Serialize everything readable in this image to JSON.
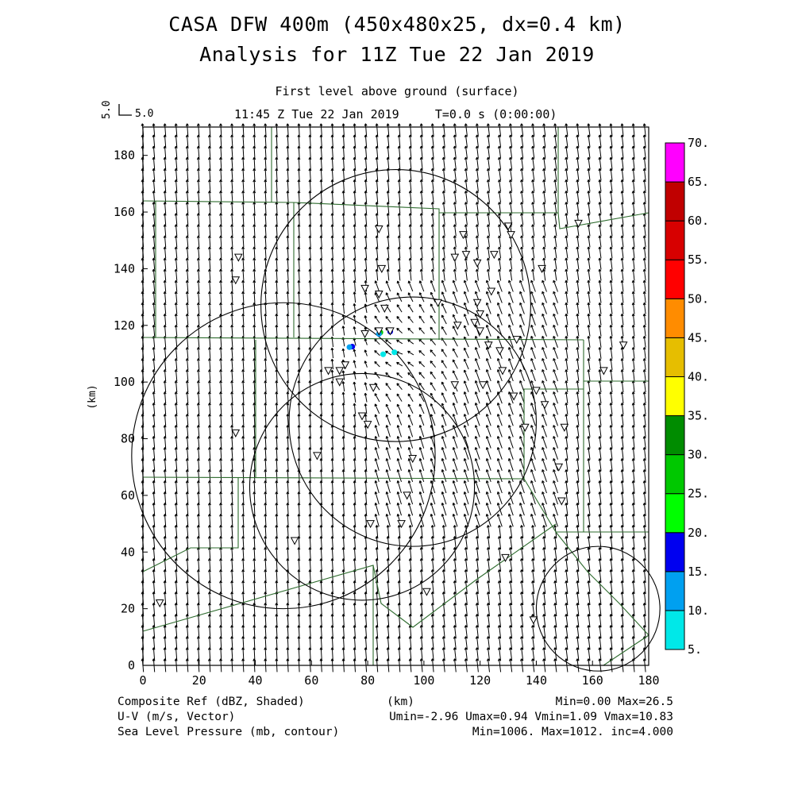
{
  "header": {
    "title_line1": "CASA DFW 400m (450x480x25, dx=0.4 km)",
    "title_line2": "Analysis for 11Z Tue 22 Jan 2019",
    "level": "First level above ground (surface)",
    "time": "11:45 Z Tue 22 Jan 2019     T=0.0 s (0:00:00)"
  },
  "vector_key": {
    "rotated_label": "5.0",
    "label": "5.0"
  },
  "footer": {
    "left_1": "Composite Ref (dBZ, Shaded)",
    "left_2": "U-V (m/s, Vector)",
    "left_3": "Sea Level Pressure (mb, contour)",
    "center": "(km)",
    "right_1": "Min=0.00 Max=26.5",
    "right_2": "Umin=-2.96 Umax=0.94 Vmin=1.09 Vmax=10.83",
    "right_3": "Min=1006. Max=1012. inc=4.000"
  },
  "colors": {
    "county_lines": "#2e6b2e",
    "contour": "#000000",
    "vector": "#000000"
  },
  "chart_data": {
    "type": "heatmap",
    "xlabel": "",
    "ylabel": "(km)",
    "xlim": [
      0,
      180
    ],
    "ylim": [
      0,
      190
    ],
    "x_ticks": [
      "0",
      "20",
      "40",
      "60",
      "80",
      "100",
      "120",
      "140",
      "160",
      "180"
    ],
    "y_ticks": [
      "0",
      "20",
      "40",
      "60",
      "80",
      "100",
      "120",
      "140",
      "160",
      "180"
    ],
    "colorbar": {
      "labels": [
        "5.",
        "10.",
        "15.",
        "20.",
        "25.",
        "30.",
        "35.",
        "40.",
        "45.",
        "50.",
        "55.",
        "60.",
        "65.",
        "70."
      ],
      "colors": [
        "#00e8e8",
        "#00a0f0",
        "#0000f0",
        "#00ff00",
        "#00c800",
        "#008c00",
        "#ffff00",
        "#e6be00",
        "#ff8c00",
        "#ff0000",
        "#d70000",
        "#c00000",
        "#ff00ff"
      ]
    },
    "reflectivity_echoes": [
      {
        "x": 74.5,
        "y": 112.5,
        "dbz": 15,
        "color": "#0000f0"
      },
      {
        "x": 73.5,
        "y": 112.3,
        "dbz": 10,
        "color": "#00a0f0"
      },
      {
        "x": 84.5,
        "y": 117.5,
        "dbz": 25,
        "color": "#00c800"
      },
      {
        "x": 84.0,
        "y": 117.0,
        "dbz": 10,
        "color": "#00a0f0"
      },
      {
        "x": 88.0,
        "y": 117.8,
        "dbz": 15,
        "color": "#0000f0"
      },
      {
        "x": 85.5,
        "y": 109.8,
        "dbz": 5,
        "color": "#00e8e8"
      },
      {
        "x": 89.5,
        "y": 110.5,
        "dbz": 5,
        "color": "#00e8e8"
      }
    ],
    "pressure_contours": [
      {
        "cx": 90,
        "cy": 127,
        "r": 48
      },
      {
        "cx": 96,
        "cy": 86,
        "r": 44
      },
      {
        "cx": 50,
        "cy": 74,
        "r": 54
      },
      {
        "cx": 78,
        "cy": 63,
        "r": 40
      },
      {
        "cx": 162,
        "cy": 20,
        "r": 22
      }
    ],
    "stations": [
      [
        6,
        22
      ],
      [
        33,
        82
      ],
      [
        34,
        144
      ],
      [
        33,
        136
      ],
      [
        54,
        44
      ],
      [
        62,
        74
      ],
      [
        66,
        104
      ],
      [
        70,
        104
      ],
      [
        72,
        106
      ],
      [
        70,
        100
      ],
      [
        78,
        88
      ],
      [
        80,
        85
      ],
      [
        81,
        50
      ],
      [
        82,
        98
      ],
      [
        85,
        140
      ],
      [
        84,
        131
      ],
      [
        86,
        126
      ],
      [
        79,
        117
      ],
      [
        79,
        133
      ],
      [
        84,
        118
      ],
      [
        88,
        118
      ],
      [
        84,
        154
      ],
      [
        92,
        50
      ],
      [
        94,
        60
      ],
      [
        96,
        73
      ],
      [
        101,
        26
      ],
      [
        105,
        128
      ],
      [
        111,
        99
      ],
      [
        111,
        144
      ],
      [
        112,
        120
      ],
      [
        114,
        152
      ],
      [
        115,
        145
      ],
      [
        118,
        121
      ],
      [
        119,
        128
      ],
      [
        119,
        142
      ],
      [
        120,
        118
      ],
      [
        120,
        124
      ],
      [
        121,
        99
      ],
      [
        123,
        113
      ],
      [
        124,
        132
      ],
      [
        125,
        145
      ],
      [
        127,
        111
      ],
      [
        128,
        104
      ],
      [
        129,
        38
      ],
      [
        130,
        155
      ],
      [
        131,
        152
      ],
      [
        132,
        95
      ],
      [
        133,
        115
      ],
      [
        136,
        84
      ],
      [
        139,
        16
      ],
      [
        140,
        97
      ],
      [
        142,
        140
      ],
      [
        143,
        92
      ],
      [
        148,
        70
      ],
      [
        149,
        58
      ],
      [
        150,
        84
      ],
      [
        155,
        156
      ],
      [
        164,
        104
      ],
      [
        171,
        113
      ]
    ],
    "wind_field_summary": {
      "u_range": [
        -2.96,
        0.94
      ],
      "v_range": [
        1.09,
        10.83
      ],
      "units": "m/s"
    }
  }
}
